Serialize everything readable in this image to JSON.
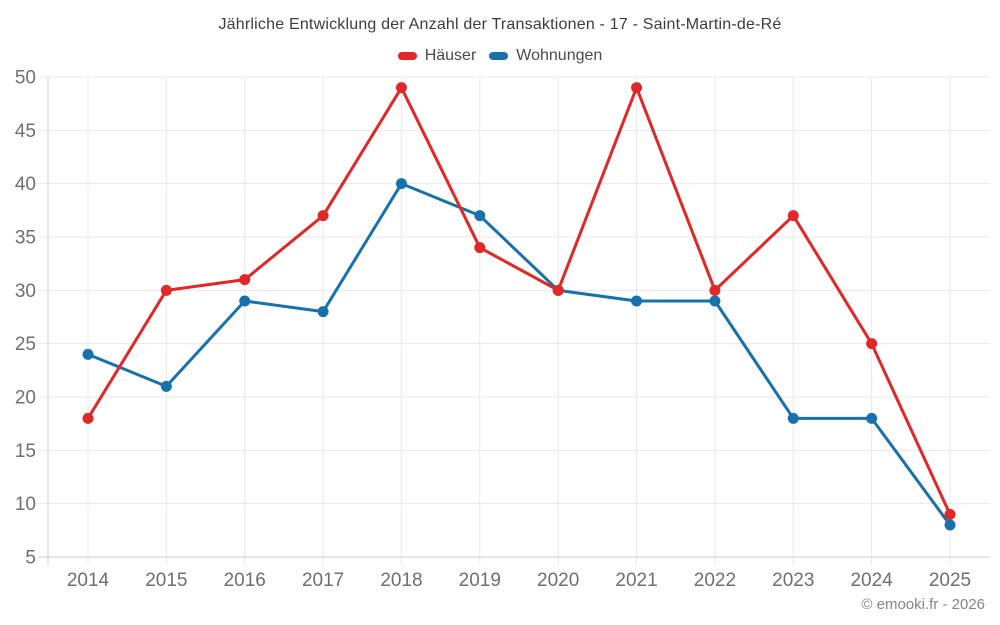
{
  "chart_data": {
    "type": "line",
    "title": "Jährliche Entwicklung der Anzahl der Transaktionen - 17 - Saint-Martin-de-Ré",
    "xlabel": "",
    "ylabel": "",
    "x_labels": [
      "2014",
      "2015",
      "2016",
      "2017",
      "2018",
      "2019",
      "2020",
      "2021",
      "2022",
      "2023",
      "2024",
      "2025"
    ],
    "series": [
      {
        "name": "Häuser",
        "color": "#e12727",
        "values": [
          18,
          30,
          31,
          37,
          49,
          34,
          30,
          49,
          30,
          37,
          25,
          9
        ]
      },
      {
        "name": "Wohnungen",
        "color": "#1871ab",
        "values": [
          24,
          21,
          29,
          28,
          40,
          37,
          30,
          29,
          29,
          18,
          18,
          8
        ]
      }
    ],
    "ylim": [
      5,
      50
    ],
    "ytick_step": 5,
    "yticks": [
      5,
      10,
      15,
      20,
      25,
      30,
      35,
      40,
      45,
      50
    ],
    "grid": true,
    "legend_position": "top",
    "marker": "circle"
  },
  "footer": {
    "copyright": "© emooki.fr - 2026"
  },
  "colors": {
    "background": "#ffffff",
    "grid": "#e8e8e8",
    "axis": "#cfcfcf",
    "axis_label": "#6f6f6f",
    "title_text": "#3d3d3d",
    "legend_text": "#4b4b4b",
    "footer_text": "#858585"
  }
}
